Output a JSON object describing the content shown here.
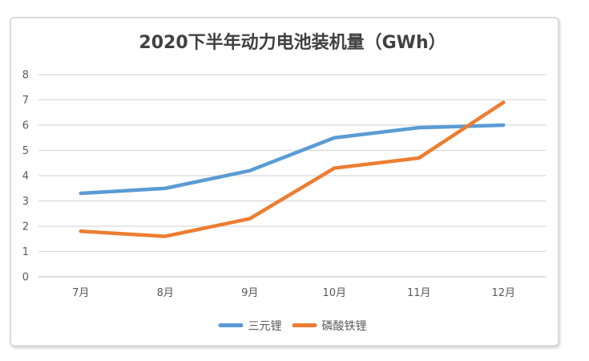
{
  "chart_data": {
    "type": "line",
    "title": "2020下半年动力电池装机量（GWh）",
    "categories": [
      "7月",
      "8月",
      "9月",
      "10月",
      "11月",
      "12月"
    ],
    "series": [
      {
        "name": "三元锂",
        "color": "#5B9BD5",
        "values": [
          3.3,
          3.5,
          4.2,
          5.5,
          5.9,
          6.0
        ]
      },
      {
        "name": "磷酸铁锂",
        "color": "#ED7D31",
        "values": [
          1.8,
          1.6,
          2.3,
          4.3,
          4.7,
          6.9
        ]
      }
    ],
    "ylim": [
      0,
      8
    ],
    "ytick_interval": 1,
    "yticks": [
      "0",
      "1",
      "2",
      "3",
      "4",
      "5",
      "6",
      "7",
      "8"
    ],
    "grid": true,
    "legend_position": "bottom",
    "legend": [
      "三元锂",
      "磷酸铁锂"
    ]
  },
  "styles": {
    "gridline_color": "#D9D9D9",
    "axis_line_color": "#C6C6C6",
    "tick_label_color": "#595959",
    "title_color": "#404040",
    "legend_text_color": "#595959",
    "card_border_color": "#DCDCDC",
    "series_colors": [
      "#5B9BD5",
      "#ED7D31"
    ]
  }
}
